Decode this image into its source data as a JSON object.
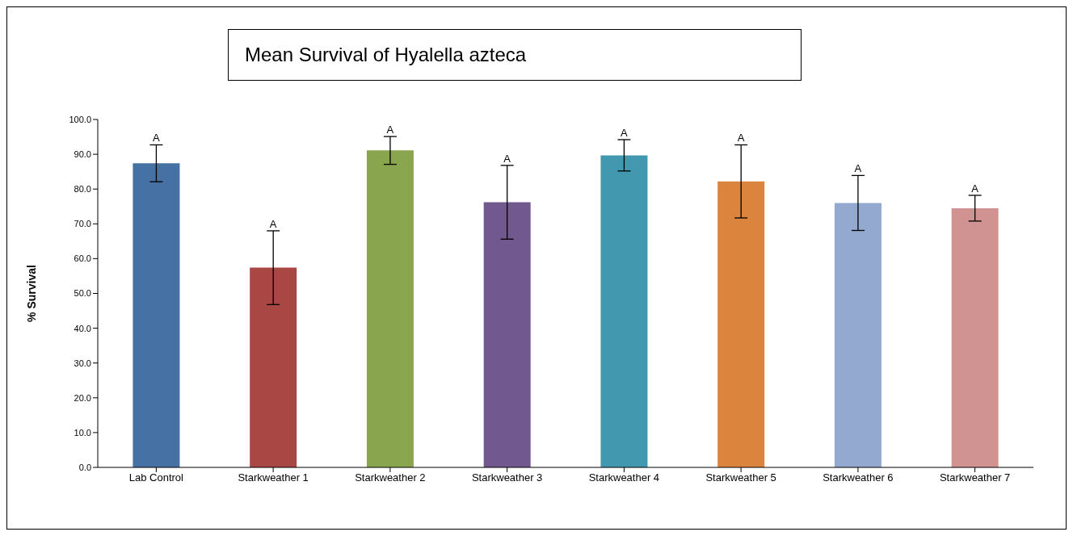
{
  "chart_data": {
    "type": "bar",
    "title": "Mean Survival of Hyalella azteca",
    "ylabel": "% Survival",
    "categories": [
      "Lab Control",
      "Starkweather 1",
      "Starkweather 2",
      "Starkweather 3",
      "Starkweather 4",
      "Starkweather 5",
      "Starkweather 6",
      "Starkweather 7"
    ],
    "values": [
      87.4,
      57.4,
      91.1,
      76.2,
      89.7,
      82.2,
      76.0,
      74.5
    ],
    "errors": [
      5.3,
      10.6,
      4.0,
      10.6,
      4.5,
      10.5,
      7.9,
      3.7
    ],
    "colors": [
      "#4671a5",
      "#a94744",
      "#89a54e",
      "#71588f",
      "#4298af",
      "#db843d",
      "#93a9cf",
      "#d19392"
    ],
    "ylim": [
      0,
      100
    ],
    "yticks": [
      {
        "value": 0,
        "label": "0.0"
      },
      {
        "value": 10,
        "label": "10.0"
      },
      {
        "value": 20,
        "label": "20.0"
      },
      {
        "value": 30,
        "label": "30.0"
      },
      {
        "value": 40,
        "label": "40.0"
      },
      {
        "value": 50,
        "label": "50.0"
      },
      {
        "value": 60,
        "label": "60.0"
      },
      {
        "value": 70,
        "label": "70.0"
      },
      {
        "value": 80,
        "label": "80.0"
      },
      {
        "value": 90,
        "label": "90.0"
      },
      {
        "value": 100,
        "label": "100.0"
      }
    ],
    "annotations": [
      "A",
      "A",
      "A",
      "A",
      "A",
      "A",
      "A",
      "A"
    ],
    "grid": false
  }
}
